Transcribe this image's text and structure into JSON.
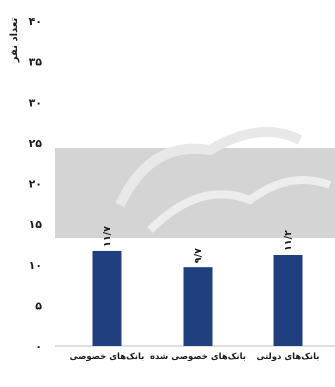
{
  "chart_data": {
    "type": "bar",
    "ylabel": "تعداد نفر",
    "ylim": [
      0,
      40
    ],
    "yticks": [
      "۰",
      "۵",
      "۱۰",
      "۱۵",
      "۲۰",
      "۲۵",
      "۳۰",
      "۳۵",
      "۴۰"
    ],
    "grid": false,
    "categories": [
      "بانک‌های خصوصی",
      "بانک‌های خصوصی شده",
      "بانک‌های دولتی"
    ],
    "values": [
      11.7,
      9.7,
      11.2
    ],
    "data_labels": [
      "۱۱/۷",
      "۹/۷",
      "۱۱/۲"
    ],
    "bar_color": "#1f3f7f"
  }
}
